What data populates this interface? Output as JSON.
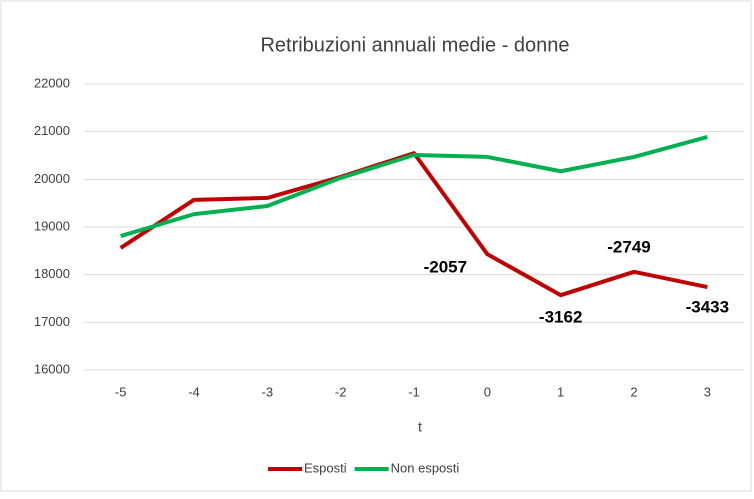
{
  "chart_data": {
    "type": "line",
    "title": "Retribuzioni annuali medie - donne",
    "x_label": "t",
    "categories": [
      "-5",
      "-4",
      "-3",
      "-2",
      "-1",
      "0",
      "1",
      "2",
      "3"
    ],
    "series": [
      {
        "name": "Esposti",
        "color": "#c00000",
        "values": [
          18560,
          19570,
          19610,
          20050,
          20550,
          18430,
          17570,
          18060,
          17740
        ]
      },
      {
        "name": "Non esposti",
        "color": "#00b050",
        "values": [
          18810,
          19270,
          19440,
          20030,
          20510,
          20470,
          20170,
          20470,
          20890
        ]
      }
    ],
    "annotations": [
      "-2057",
      "-3162",
      "-2749",
      "-3433"
    ],
    "ylim": [
      16000,
      22000
    ],
    "yticks": [
      16000,
      17000,
      18000,
      19000,
      20000,
      21000,
      22000
    ],
    "grid": true,
    "legend": "bottom"
  }
}
